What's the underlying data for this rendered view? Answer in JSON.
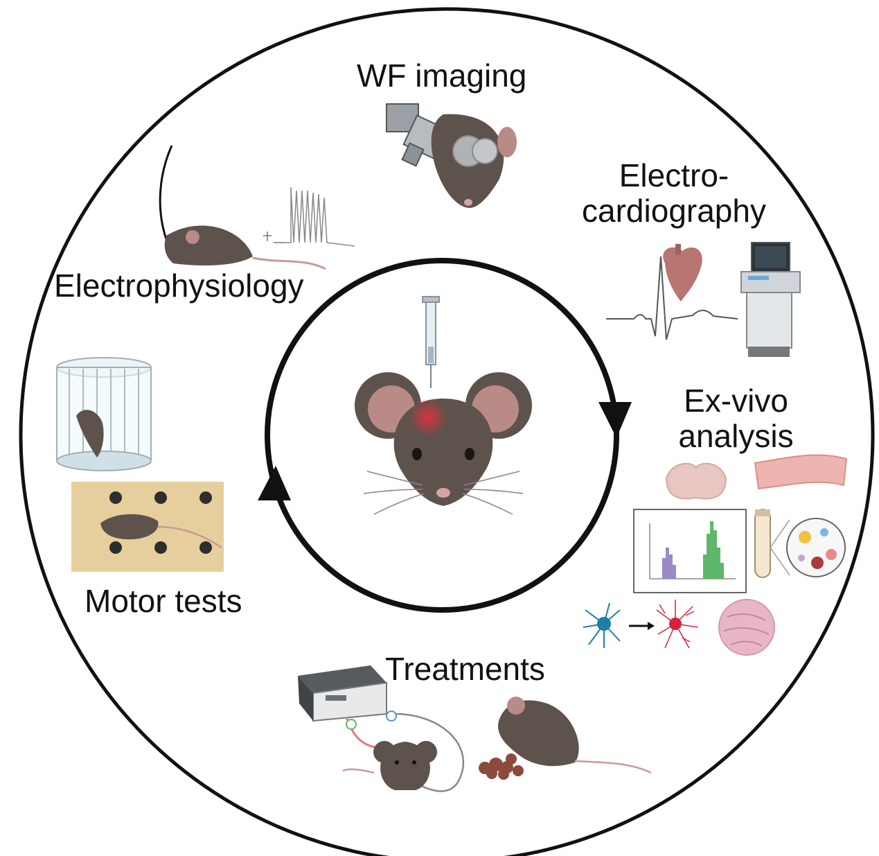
{
  "labels": {
    "wf_imaging": "WF imaging",
    "electro_line1": "Electro-",
    "electro_line2": "cardiography",
    "electrophysiology": "Electrophysiology",
    "exvivo_line1": "Ex-vivo",
    "exvivo_line2": "analysis",
    "motor_tests": "Motor tests",
    "treatments": "Treatments"
  },
  "colors": {
    "outline": "#111111",
    "mouse_fur": "#5e524d",
    "mouse_fur_dark": "#463c38",
    "ear_inner": "#b98a86",
    "nose": "#d9a3a3",
    "injection_glow": "#e0313a",
    "histogram_green": "#5fb86a",
    "histogram_purple": "#9b8ac8",
    "cell_blue": "#1d7fa8",
    "cell_red": "#d2243a",
    "board": "#e6cf9c",
    "laser": "#e9f22c"
  },
  "icons": [
    "syringe-icon",
    "mouse-face-icon",
    "microscope-icon",
    "electrode-mouse-icon",
    "ecg-trace-icon",
    "heart-icon",
    "ultrasound-machine-icon",
    "cylinder-cage-icon",
    "grid-board-icon",
    "brain-slice-icon",
    "muscle-tissue-icon",
    "histogram-icon",
    "test-tube-icon",
    "magnified-cells-icon",
    "microglia-icon",
    "histology-circle-icon",
    "stimulator-device-icon",
    "eating-mouse-icon"
  ]
}
